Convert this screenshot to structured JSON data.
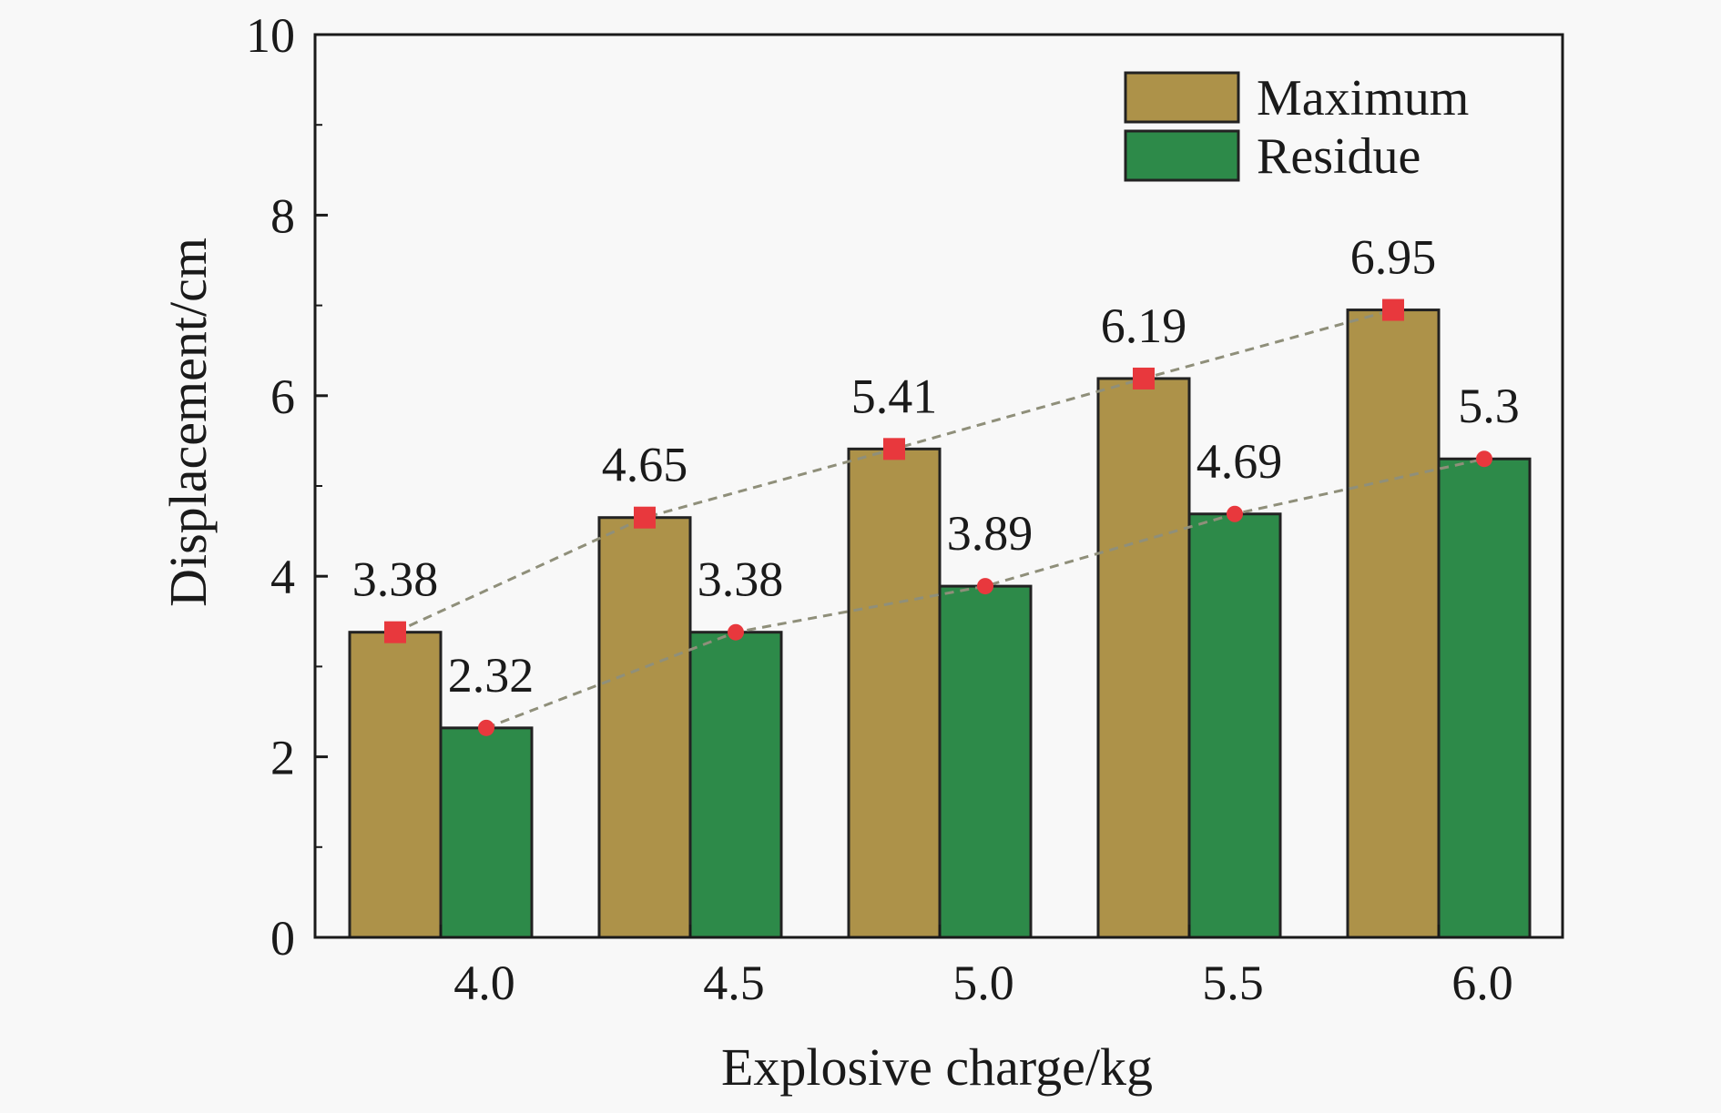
{
  "chart_data": {
    "type": "bar",
    "xlabel": "Explosive charge/kg",
    "ylabel": "Displacement/cm",
    "categories": [
      "4.0",
      "4.5",
      "5.0",
      "5.5",
      "6.0"
    ],
    "ylim": [
      0,
      10
    ],
    "yticks": [
      "0",
      "2",
      "4",
      "6",
      "8",
      "10"
    ],
    "legend_position": "top-right",
    "grid": false,
    "series": [
      {
        "name": "Maximum",
        "values": [
          3.38,
          4.65,
          5.41,
          6.19,
          6.95
        ],
        "labels": [
          "3.38",
          "4.65",
          "5.41",
          "6.19",
          "6.95"
        ],
        "color": "#ad9249",
        "marker": "square",
        "marker_color": "#e8383d",
        "line_color": "#8f8f7a"
      },
      {
        "name": "Residue",
        "values": [
          2.32,
          3.38,
          3.89,
          4.69,
          5.3
        ],
        "labels": [
          "2.32",
          "3.38",
          "3.89",
          "4.69",
          "5.3"
        ],
        "color": "#2d8a49",
        "marker": "circle",
        "marker_color": "#e8383d",
        "line_color": "#8f8f7a"
      }
    ]
  }
}
